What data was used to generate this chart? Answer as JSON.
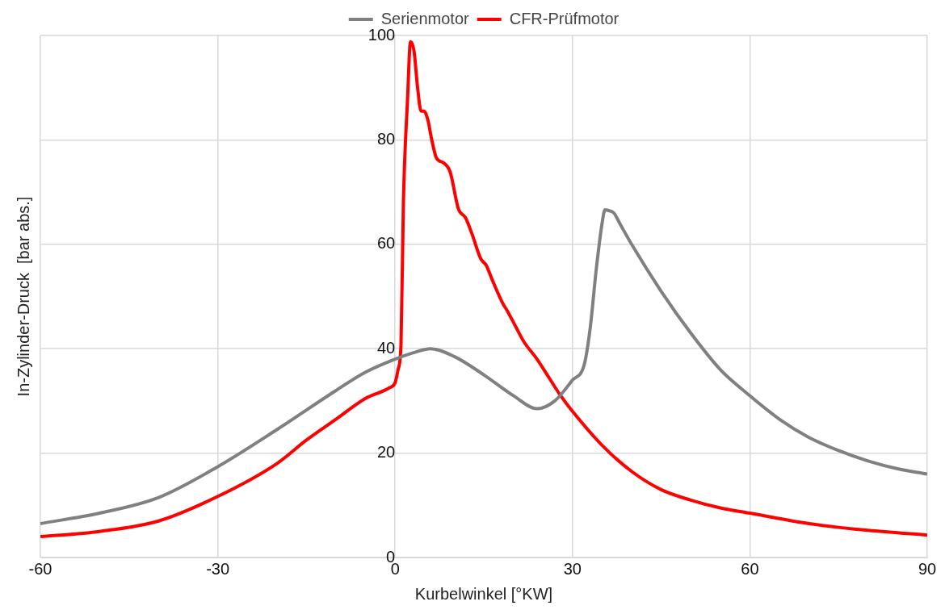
{
  "chart_data": {
    "type": "line",
    "xlabel": "Kurbelwinkel [°KW]",
    "ylabel": "In-Zylinder-Druck  [bar abs.]",
    "xlim": [
      -60,
      90
    ],
    "xticks": [
      -60,
      -30,
      0,
      30,
      60,
      90
    ],
    "ylim": [
      0,
      100
    ],
    "yticks": [
      0,
      20,
      40,
      60,
      80,
      100
    ],
    "grid": true,
    "legend": "top",
    "marker": "none",
    "line_style": "solid",
    "series": [
      {
        "name": "Serienmotor",
        "color": "#808080",
        "x": [
          -60,
          -50,
          -40,
          -30,
          -20,
          -10,
          -5,
          0,
          3,
          6,
          10,
          15,
          20,
          24,
          27,
          30,
          32,
          33,
          34,
          35,
          35.5,
          36,
          37,
          38,
          40,
          45,
          50,
          55,
          60,
          65,
          70,
          75,
          80,
          85,
          90
        ],
        "values": [
          6.5,
          8.5,
          11.5,
          17.4,
          24.5,
          32,
          35.5,
          38,
          39.2,
          40,
          38.5,
          35,
          31,
          28.5,
          30,
          34,
          37,
          44,
          55,
          64,
          66.6,
          66.5,
          66,
          64,
          60,
          51,
          43,
          36,
          31,
          26.5,
          23,
          20.5,
          18.5,
          17,
          16
        ]
      },
      {
        "name": "CFR-Prüfmotor",
        "color": "#ff0000",
        "x": [
          -60,
          -50,
          -40,
          -30,
          -20,
          -15,
          -10,
          -5,
          -1,
          0,
          0.5,
          1,
          1.4,
          2.1,
          2.6,
          3.2,
          3.8,
          4.4,
          4.9,
          5.5,
          6.2,
          7,
          8.2,
          9.3,
          10.7,
          11.9,
          13,
          14.5,
          15.4,
          16.5,
          18.2,
          19.1,
          20.5,
          21.8,
          24,
          26,
          28,
          30,
          35,
          40,
          45,
          50,
          55,
          60,
          70,
          80,
          90
        ],
        "values": [
          4,
          5,
          7,
          11.7,
          18,
          22.5,
          26.5,
          30.5,
          32.5,
          33.5,
          36,
          41,
          68,
          87.8,
          98.8,
          97,
          90,
          85.5,
          85.5,
          84,
          80,
          76.5,
          75.6,
          73.9,
          66.8,
          65.1,
          62,
          57.2,
          56,
          53,
          48.7,
          47,
          44,
          41.3,
          38,
          34.5,
          31,
          28,
          21.5,
          16.5,
          13,
          11,
          9.5,
          8.5,
          6.5,
          5.2,
          4.3
        ]
      }
    ]
  }
}
